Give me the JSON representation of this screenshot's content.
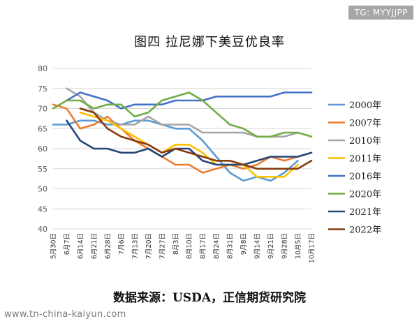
{
  "watermarks": {
    "top_right": "TG: MYYJJPP",
    "bottom_left": "www.tn-china-kaiyun.com"
  },
  "chart_data": {
    "type": "line",
    "title": "图四  拉尼娜下美豆优良率",
    "source": "数据来源：USDA，正信期货研究院",
    "xlabel": "",
    "ylabel": "",
    "ylim": [
      40,
      80
    ],
    "yticks": [
      40,
      45,
      50,
      55,
      60,
      65,
      70,
      75,
      80
    ],
    "grid": true,
    "legend_position": "right",
    "categories": [
      "5月30日",
      "6月7日",
      "6月14日",
      "6月21日",
      "6月28日",
      "7月6日",
      "7月13日",
      "7月20日",
      "7月27日",
      "8月3日",
      "8月10日",
      "8月17日",
      "8月24日",
      "8月31日",
      "9月8日",
      "9月14日",
      "9月21日",
      "9月28日",
      "10月5日",
      "10月17日"
    ],
    "series": [
      {
        "name": "2000年",
        "color": "#5b9bd5",
        "values": [
          66,
          66,
          67,
          67,
          66,
          66,
          67,
          67,
          66,
          65,
          65,
          62,
          58,
          54,
          52,
          53,
          52,
          54,
          57,
          null
        ]
      },
      {
        "name": "2007年",
        "color": "#ed7d31",
        "values": [
          71,
          70,
          65,
          66,
          68,
          65,
          62,
          60,
          58,
          56,
          56,
          54,
          55,
          56,
          55,
          56,
          58,
          57,
          58,
          null
        ]
      },
      {
        "name": "2010年",
        "color": "#a5a5a5",
        "values": [
          null,
          75,
          73,
          69,
          67,
          66,
          66,
          68,
          66,
          66,
          66,
          64,
          64,
          64,
          64,
          63,
          63,
          63,
          64,
          null
        ]
      },
      {
        "name": "2011年",
        "color": "#ffc000",
        "values": [
          null,
          null,
          69,
          68,
          67,
          65,
          63,
          61,
          59,
          61,
          61,
          59,
          56,
          56,
          56,
          53,
          53,
          53,
          56,
          null
        ]
      },
      {
        "name": "2016年",
        "color": "#4472c4",
        "values": [
          null,
          72,
          74,
          73,
          72,
          70,
          71,
          71,
          71,
          72,
          72,
          72,
          73,
          73,
          73,
          73,
          73,
          74,
          74,
          74
        ]
      },
      {
        "name": "2020年",
        "color": "#70ad47",
        "values": [
          70,
          72,
          72,
          70,
          71,
          71,
          68,
          69,
          72,
          73,
          74,
          72,
          69,
          66,
          65,
          63,
          63,
          64,
          64,
          63
        ]
      },
      {
        "name": "2021年",
        "color": "#264478",
        "values": [
          null,
          67,
          62,
          60,
          60,
          59,
          59,
          60,
          58,
          60,
          60,
          57,
          56,
          56,
          56,
          57,
          58,
          58,
          58,
          59
        ]
      },
      {
        "name": "2022年",
        "color": "#843c0c",
        "values": [
          null,
          null,
          70,
          69,
          65,
          63,
          62,
          61,
          59,
          60,
          59,
          58,
          57,
          57,
          56,
          55,
          55,
          55,
          55,
          57
        ]
      }
    ]
  }
}
